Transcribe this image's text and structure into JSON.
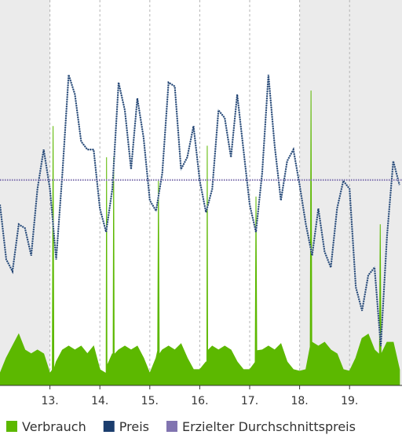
{
  "chart_data": {
    "type": "line",
    "xlim": [
      12,
      20.05
    ],
    "ylim": [
      0,
      100
    ],
    "xticks": [
      {
        "value": 13,
        "label": "13."
      },
      {
        "value": 14,
        "label": "14."
      },
      {
        "value": 15,
        "label": "15."
      },
      {
        "value": 16,
        "label": "16."
      },
      {
        "value": 17,
        "label": "17."
      },
      {
        "value": 18,
        "label": "18."
      },
      {
        "value": 19,
        "label": "19."
      }
    ],
    "grid": "x",
    "shaded_x": [
      [
        12,
        13
      ],
      [
        18,
        20.05
      ]
    ],
    "shade_color": "#ebebeb",
    "legend": "bottom",
    "series": [
      {
        "name": "Verbrauch",
        "color": "#5cb800",
        "kind": "area",
        "x": [
          12,
          12.125,
          12.25,
          12.375,
          12.5,
          12.625,
          12.75,
          12.875,
          13,
          13.047,
          13.063,
          13.079,
          13.125,
          13.25,
          13.375,
          13.5,
          13.625,
          13.75,
          13.875,
          14,
          14.125,
          14.134,
          14.142,
          14.25,
          14.265,
          14.276,
          14.287,
          14.375,
          14.5,
          14.625,
          14.75,
          14.875,
          15,
          15.125,
          15.157,
          15.173,
          15.189,
          15.25,
          15.375,
          15.5,
          15.625,
          15.75,
          15.875,
          16,
          16.125,
          16.142,
          16.15,
          16.158,
          16.25,
          16.375,
          16.5,
          16.625,
          16.75,
          16.875,
          17,
          17.11,
          17.126,
          17.142,
          17.25,
          17.375,
          17.5,
          17.625,
          17.75,
          17.875,
          18,
          18.125,
          18.212,
          18.228,
          18.244,
          18.25,
          18.375,
          18.5,
          18.625,
          18.75,
          18.875,
          19,
          19.125,
          19.25,
          19.375,
          19.5,
          19.598,
          19.614,
          19.63,
          19.75,
          19.875,
          20
        ],
        "values": [
          3.1,
          7.1,
          10.2,
          13.3,
          9.2,
          8.2,
          9.2,
          8.2,
          3.1,
          4,
          67.3,
          4,
          6.1,
          9.2,
          10.2,
          9.2,
          10.2,
          8.2,
          10.2,
          4.1,
          3.1,
          59.2,
          5,
          8.2,
          8,
          59.2,
          8,
          9.2,
          10.2,
          9.2,
          10.2,
          7.1,
          3.1,
          7.1,
          9,
          53.1,
          8,
          9.2,
          10.2,
          9.2,
          10.8,
          7.1,
          4.1,
          4.1,
          6.1,
          6,
          62.2,
          9,
          10.2,
          9.2,
          10.2,
          9.2,
          6.1,
          4.1,
          4.1,
          6,
          49,
          9,
          9.2,
          10.2,
          9.2,
          10.8,
          6.1,
          4.1,
          3.7,
          4.1,
          10,
          76.5,
          10,
          11.2,
          10.2,
          11.2,
          9.2,
          8.2,
          4.1,
          3.7,
          7.1,
          12.2,
          13.3,
          9.2,
          8,
          41.8,
          8,
          11.2,
          11.2,
          4.1
        ]
      },
      {
        "name": "Preis",
        "color": "#1b3d6e",
        "kind": "dotted",
        "x": [
          12,
          12.125,
          12.25,
          12.375,
          12.5,
          12.625,
          12.75,
          12.875,
          13,
          13.125,
          13.25,
          13.375,
          13.5,
          13.625,
          13.75,
          13.875,
          14,
          14.125,
          14.25,
          14.375,
          14.5,
          14.625,
          14.75,
          14.875,
          15,
          15.125,
          15.25,
          15.375,
          15.5,
          15.625,
          15.75,
          15.875,
          16,
          16.125,
          16.25,
          16.375,
          16.5,
          16.625,
          16.75,
          16.875,
          17,
          17.125,
          17.25,
          17.375,
          17.5,
          17.625,
          17.75,
          17.875,
          18,
          18.125,
          18.25,
          18.375,
          18.5,
          18.625,
          18.75,
          18.875,
          19,
          19.125,
          19.25,
          19.375,
          19.5,
          19.625,
          19.75,
          19.875,
          20
        ],
        "values": [
          46.9,
          32.7,
          29.6,
          41.8,
          40.8,
          33.7,
          51,
          61.2,
          51,
          32.7,
          55.1,
          80.6,
          75.5,
          63.3,
          61.2,
          61.2,
          45.9,
          39.8,
          51,
          78.6,
          71.4,
          56.1,
          74.5,
          64.3,
          48,
          45.3,
          55.1,
          78.6,
          77.6,
          56.1,
          59.2,
          67.3,
          53.1,
          44.9,
          51,
          71.4,
          69.4,
          59.2,
          75.5,
          61.2,
          46.9,
          39.8,
          55.1,
          80.6,
          62.2,
          48,
          58.2,
          61.2,
          52,
          41.8,
          33.7,
          45.9,
          34.7,
          30.6,
          45.9,
          53.1,
          51,
          25.5,
          19.4,
          28.6,
          30.6,
          10.2,
          38.8,
          58.2,
          52
        ]
      },
      {
        "name": "Erzielter Durchschnittspreis",
        "color": "#8174b0",
        "kind": "dotted",
        "x": [
          12,
          20.05
        ],
        "values": [
          53.3,
          53.3
        ]
      }
    ]
  }
}
